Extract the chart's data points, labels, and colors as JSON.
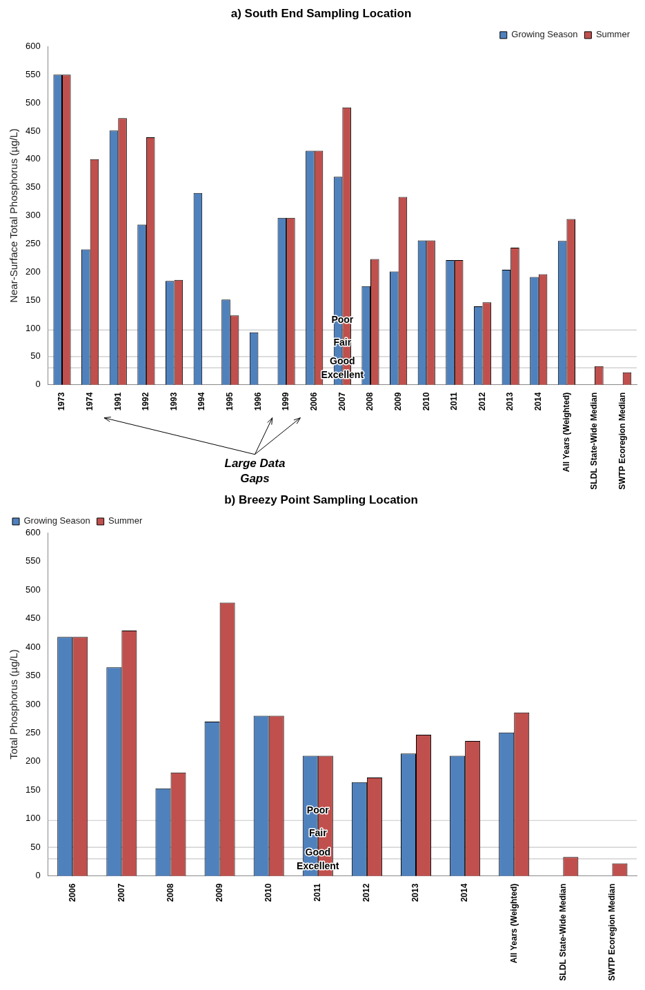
{
  "chart_data": [
    {
      "type": "bar",
      "title": "a) South End Sampling Location",
      "ylabel": "Near-Surface Total Phosphorus (µg/L)",
      "categories": [
        "1973",
        "1974",
        "1991",
        "1992",
        "1993",
        "1994",
        "1995",
        "1996",
        "1999",
        "2006",
        "2007",
        "2008",
        "2009",
        "2010",
        "2011",
        "2012",
        "2013",
        "2014",
        "All Years (Weighted)",
        "SLDL State-Wide Median",
        "SWTP Ecoregion Median"
      ],
      "series": [
        {
          "name": "Growing Season",
          "color": "#4f81bd",
          "values": [
            550,
            240,
            451,
            284,
            184,
            340,
            151,
            93,
            296,
            415,
            369,
            175,
            201,
            256,
            221,
            139,
            204,
            191,
            255,
            null,
            null
          ]
        },
        {
          "name": "Summer",
          "color": "#c0504d",
          "values": [
            550,
            400,
            473,
            439,
            186,
            null,
            123,
            null,
            296,
            415,
            492,
            223,
            333,
            256,
            221,
            146,
            243,
            196,
            294,
            33,
            22
          ]
        }
      ],
      "ylim": [
        0,
        600
      ],
      "yticks": [
        0,
        50,
        100,
        150,
        200,
        250,
        300,
        350,
        400,
        450,
        500,
        550,
        600
      ],
      "grid": false,
      "legend": "top right",
      "ref_lines": [
        {
          "axis": "y",
          "value": 97,
          "color": "#c8c8c8"
        },
        {
          "axis": "y",
          "value": 50,
          "color": "#c8c8c8"
        },
        {
          "axis": "y",
          "value": 30,
          "color": "#c8c8c8"
        }
      ],
      "annotations": [
        {
          "text": "Poor",
          "x": "2007",
          "y": 114
        },
        {
          "text": "Fair",
          "x": "2007",
          "y": 74
        },
        {
          "text": "Good",
          "x": "2007",
          "y": 41
        },
        {
          "text": "Excellent",
          "x": "2007",
          "y": 16
        },
        "Large Data Gaps"
      ]
    },
    {
      "type": "bar",
      "title": "b) Breezy Point Sampling Location",
      "ylabel": "Total Phosphorus (µg/L)",
      "categories": [
        "2006",
        "2007",
        "2008",
        "2009",
        "2010",
        "2011",
        "2012",
        "2013",
        "2014",
        "All Years (Weighted)",
        "SLDL State-Wide Median",
        "SWTP Ecoregion Median"
      ],
      "series": [
        {
          "name": "Growing Season",
          "color": "#4f81bd",
          "values": [
            418,
            365,
            153,
            270,
            280,
            210,
            164,
            214,
            210,
            251,
            null,
            null
          ]
        },
        {
          "name": "Summer",
          "color": "#c0504d",
          "values": [
            418,
            429,
            181,
            478,
            280,
            210,
            172,
            247,
            236,
            286,
            33,
            22
          ]
        }
      ],
      "ylim": [
        0,
        600
      ],
      "yticks": [
        0,
        50,
        100,
        150,
        200,
        250,
        300,
        350,
        400,
        450,
        500,
        550,
        600
      ],
      "grid": false,
      "legend": "top left",
      "ref_lines": [
        {
          "axis": "y",
          "value": 97,
          "color": "#c8c8c8"
        },
        {
          "axis": "y",
          "value": 50,
          "color": "#c8c8c8"
        },
        {
          "axis": "y",
          "value": 30,
          "color": "#c8c8c8"
        }
      ],
      "annotations": [
        {
          "text": "Poor",
          "x": "2011",
          "y": 114
        },
        {
          "text": "Fair",
          "x": "2011",
          "y": 74
        },
        {
          "text": "Good",
          "x": "2011",
          "y": 41
        },
        {
          "text": "Excellent",
          "x": "2011",
          "y": 16
        }
      ]
    }
  ]
}
